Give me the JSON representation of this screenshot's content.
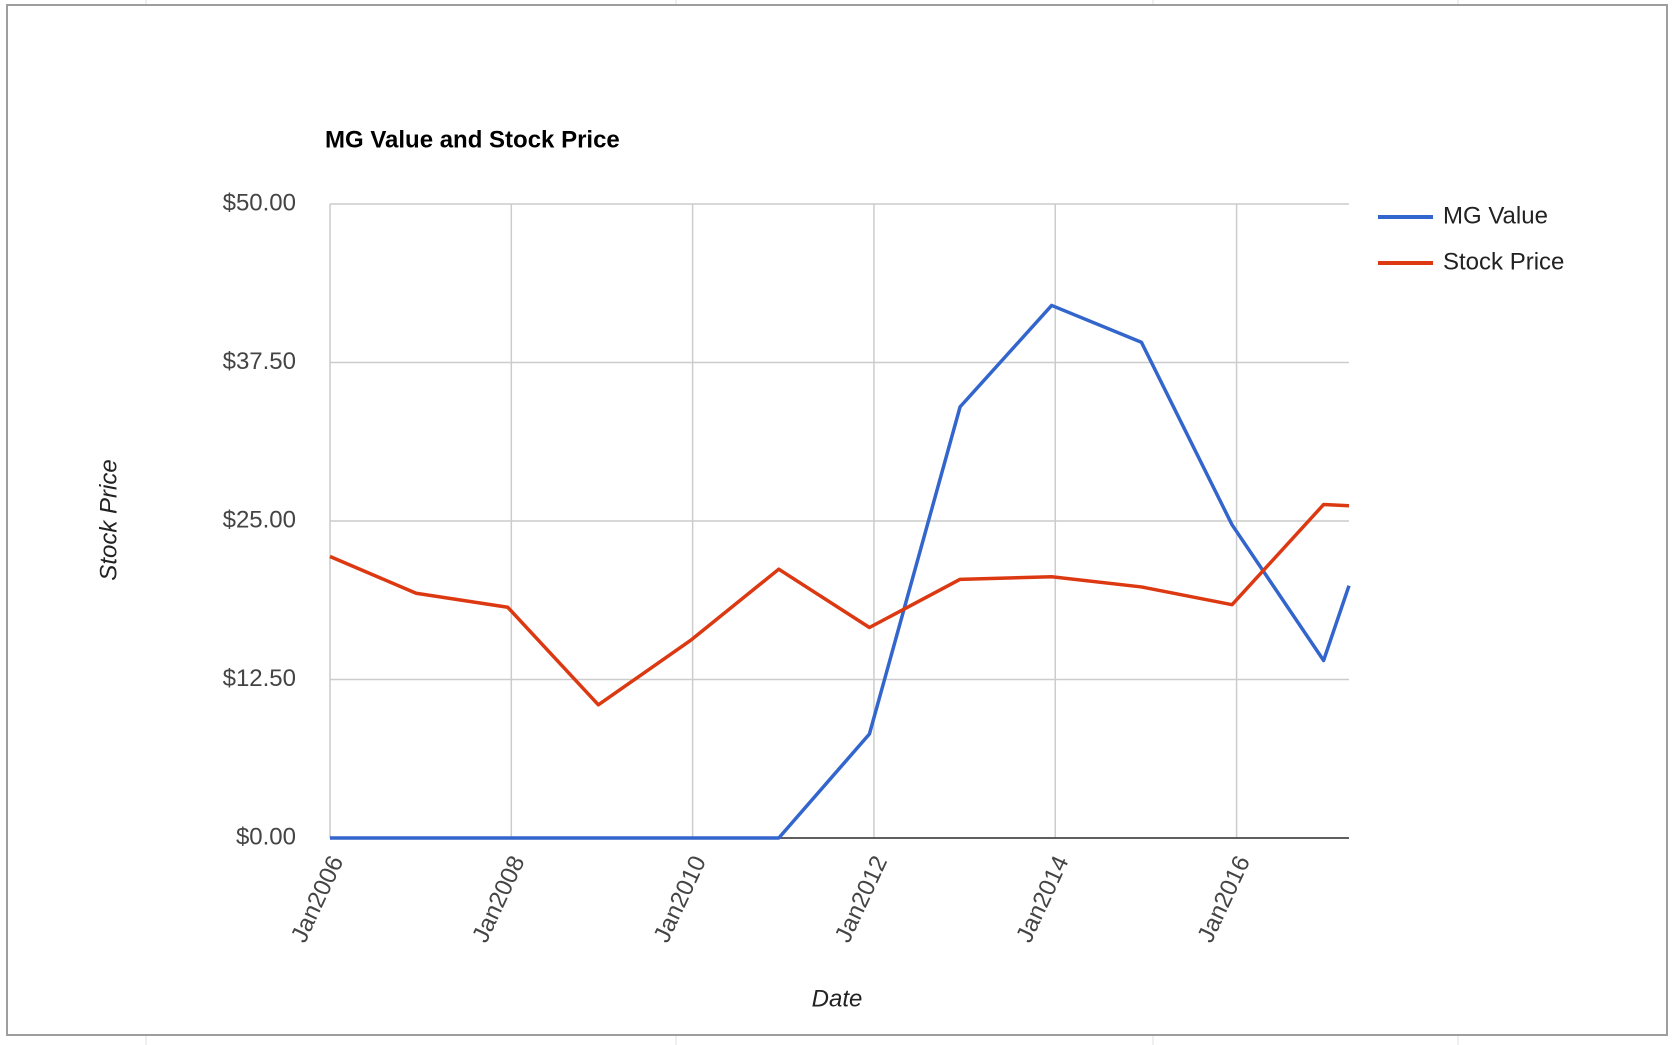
{
  "chart_data": {
    "type": "line",
    "title": "MG Value and Stock Price",
    "x_label": "Date",
    "y_label": "Stock Price",
    "x": [
      2006,
      2006.95,
      2007.96,
      2008.96,
      2009.98,
      2010.95,
      2011.95,
      2012.95,
      2013.96,
      2014.95,
      2015.95,
      2016.96,
      2017.24
    ],
    "series": [
      {
        "name": "MG Value",
        "color": "#3366cc",
        "values": [
          0,
          0,
          0,
          0,
          0,
          0,
          8.2,
          34.0,
          42.0,
          39.1,
          24.7,
          14.0,
          19.9
        ]
      },
      {
        "name": "Stock Price",
        "color": "#dc3912",
        "values": [
          22.2,
          19.3,
          18.2,
          10.5,
          15.6,
          21.2,
          16.6,
          20.4,
          20.6,
          19.8,
          18.4,
          26.3,
          26.2
        ]
      }
    ],
    "xlim": [
      2006,
      2017.24
    ],
    "xticks": [
      {
        "value": 2006,
        "label": "Jan2006"
      },
      {
        "value": 2008,
        "label": "Jan2008"
      },
      {
        "value": 2010,
        "label": "Jan2010"
      },
      {
        "value": 2012,
        "label": "Jan2012"
      },
      {
        "value": 2014,
        "label": "Jan2014"
      },
      {
        "value": 2016,
        "label": "Jan2016"
      }
    ],
    "ylim": [
      0,
      50
    ],
    "yticks": [
      {
        "value": 0,
        "label": "$0.00"
      },
      {
        "value": 12.5,
        "label": "$12.50"
      },
      {
        "value": 25,
        "label": "$25.00"
      },
      {
        "value": 37.5,
        "label": "$37.50"
      },
      {
        "value": 50,
        "label": "$50.00"
      }
    ],
    "grid": true,
    "legend": "right"
  }
}
